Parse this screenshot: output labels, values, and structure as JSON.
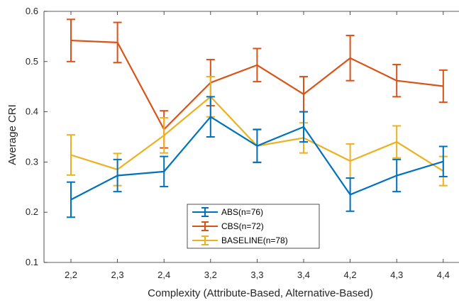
{
  "chart_data": {
    "type": "line",
    "xlabel": "Complexity (Attribute-Based, Alternative-Based)",
    "ylabel": "Average CRI",
    "categories": [
      "2,2",
      "2,3",
      "2,4",
      "3,2",
      "3,3",
      "3,4",
      "4,2",
      "4,3",
      "4,4"
    ],
    "ylim": [
      0.1,
      0.6
    ],
    "yticks": [
      "0.1",
      "0.2",
      "0.3",
      "0.4",
      "0.5",
      "0.6"
    ],
    "grid": false,
    "legend_position": "bottom-center",
    "series": [
      {
        "name": "ABS(n=76)",
        "color": "#0072BD",
        "values": [
          0.225,
          0.273,
          0.281,
          0.39,
          0.332,
          0.37,
          0.235,
          0.273,
          0.301
        ],
        "errors": [
          0.035,
          0.032,
          0.03,
          0.04,
          0.033,
          0.03,
          0.033,
          0.032,
          0.03
        ]
      },
      {
        "name": "CBS(n=72)",
        "color": "#D95319",
        "values": [
          0.542,
          0.538,
          0.365,
          0.458,
          0.493,
          0.435,
          0.507,
          0.462,
          0.451
        ],
        "errors": [
          0.042,
          0.04,
          0.037,
          0.046,
          0.033,
          0.035,
          0.045,
          0.032,
          0.032
        ]
      },
      {
        "name": "BASELINE(n=78)",
        "color": "#EDB120",
        "values": [
          0.314,
          0.285,
          0.353,
          0.43,
          0.332,
          0.348,
          0.302,
          0.34,
          0.282
        ],
        "errors": [
          0.04,
          0.032,
          0.035,
          0.04,
          0.032,
          0.03,
          0.034,
          0.032,
          0.029
        ]
      }
    ]
  }
}
